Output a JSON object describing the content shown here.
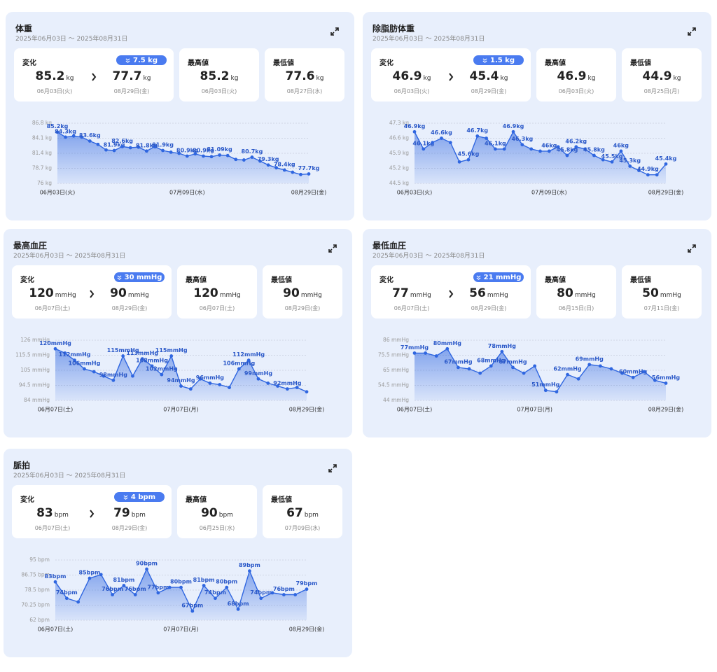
{
  "chart_data": [
    {
      "type": "line",
      "title": "体重",
      "subtitle": "2025年06月03日 〜 2025年08月31日",
      "color": "#2f66e0",
      "grid": true,
      "ylim": [
        76,
        86.8
      ],
      "yticks": [
        {
          "value": 76,
          "label": "76 kg"
        },
        {
          "value": 78.7,
          "label": "78.7 kg"
        },
        {
          "value": 81.4,
          "label": "81.4 kg"
        },
        {
          "value": 84.1,
          "label": "84.1 kg"
        },
        {
          "value": 86.8,
          "label": "86.8 kg"
        }
      ],
      "categories": [
        "06月03日(火)",
        null,
        null,
        null,
        null,
        null,
        null,
        null,
        null,
        null,
        null,
        null,
        null,
        null,
        null,
        null,
        "07月09日(水)",
        null,
        null,
        null,
        null,
        null,
        null,
        null,
        null,
        null,
        null,
        null,
        null,
        null,
        null,
        "08月29日(金)"
      ],
      "values": [
        85.2,
        84.3,
        84.5,
        84.3,
        83.6,
        83.0,
        82.0,
        81.9,
        82.6,
        82.4,
        82.5,
        81.8,
        82.6,
        81.9,
        81.6,
        81.4,
        80.9,
        81.3,
        80.9,
        80.8,
        81.09,
        81.0,
        80.3,
        80.2,
        80.7,
        80.0,
        79.3,
        78.8,
        78.4,
        78.0,
        77.6,
        77.7
      ],
      "value_labels": [
        "85.2kg",
        "84.3kg",
        null,
        null,
        "83.6kg",
        null,
        null,
        "81.9kg",
        "82.6kg",
        null,
        null,
        "81.8kg",
        null,
        "81.9kg",
        null,
        null,
        "80.9kg",
        null,
        "80.9kg",
        null,
        "81.09kg",
        null,
        null,
        null,
        "80.7kg",
        null,
        "79.3kg",
        null,
        "78.4kg",
        null,
        null,
        "77.7kg"
      ]
    },
    {
      "type": "line",
      "title": "除脂肪体重",
      "subtitle": "2025年06月03日 〜 2025年08月31日",
      "color": "#2f66e0",
      "grid": true,
      "ylim": [
        44.5,
        47.3
      ],
      "yticks": [
        {
          "value": 44.5,
          "label": "44.5 kg"
        },
        {
          "value": 45.2,
          "label": "45.2 kg"
        },
        {
          "value": 45.9,
          "label": "45.9 kg"
        },
        {
          "value": 46.6,
          "label": "46.6 kg"
        },
        {
          "value": 47.3,
          "label": "47.3 kg"
        }
      ],
      "categories": [
        "06月03日(火)",
        null,
        null,
        null,
        null,
        null,
        null,
        null,
        null,
        null,
        null,
        null,
        null,
        null,
        null,
        "07月09日(水)",
        null,
        null,
        null,
        null,
        null,
        null,
        null,
        null,
        null,
        null,
        null,
        null,
        "08月29日(金)"
      ],
      "values": [
        46.9,
        46.1,
        46.4,
        46.6,
        46.4,
        45.5,
        45.6,
        46.7,
        46.6,
        46.1,
        46.1,
        46.9,
        46.3,
        46.1,
        46.0,
        46.0,
        46.2,
        45.8,
        46.2,
        46.1,
        45.8,
        45.6,
        45.5,
        46.0,
        45.3,
        45.1,
        44.9,
        44.9,
        45.4
      ],
      "value_labels": [
        "46.9kg",
        "46.1kg",
        null,
        "46.6kg",
        null,
        null,
        "45.6kg",
        "46.7kg",
        null,
        "46.1kg",
        null,
        "46.9kg",
        "46.3kg",
        null,
        null,
        "46kg",
        null,
        "45.8kg",
        "46.2kg",
        null,
        "45.8kg",
        null,
        "45.5kg",
        "46kg",
        "45.3kg",
        null,
        "44.9kg",
        null,
        "45.4kg"
      ]
    },
    {
      "type": "line",
      "title": "最高血圧",
      "subtitle": "2025年06月03日 〜 2025年08月31日",
      "color": "#2f66e0",
      "grid": true,
      "ylim": [
        84,
        126
      ],
      "yticks": [
        {
          "value": 84,
          "label": "84 mmHg"
        },
        {
          "value": 94.5,
          "label": "94.5 mmHg"
        },
        {
          "value": 105,
          "label": "105 mmHg"
        },
        {
          "value": 115.5,
          "label": "115.5 mmHg"
        },
        {
          "value": 126,
          "label": "126 mmHg"
        }
      ],
      "categories": [
        "06月07日(土)",
        null,
        null,
        null,
        null,
        null,
        null,
        null,
        null,
        null,
        null,
        null,
        null,
        "07月07日(月)",
        null,
        null,
        null,
        null,
        null,
        null,
        null,
        null,
        null,
        null,
        null,
        null,
        "08月29日(金)"
      ],
      "values": [
        120,
        117,
        112,
        106,
        104,
        101,
        98,
        115,
        101,
        113,
        108,
        102,
        115,
        94,
        92,
        99,
        96,
        95,
        93,
        106,
        112,
        99,
        96,
        94,
        92,
        93,
        90
      ],
      "value_labels": [
        "120mmHg",
        null,
        "112mmHg",
        "106mmHg",
        null,
        null,
        "98mmHg",
        "115mmHg",
        null,
        "113mmHg",
        "108mmHg",
        "102mmHg",
        "115mmHg",
        "94mmHg",
        null,
        null,
        "96mmHg",
        null,
        null,
        "106mmHg",
        "112mmHg",
        "99mmHg",
        null,
        null,
        "92mmHg",
        null,
        null
      ]
    },
    {
      "type": "line",
      "title": "最低血圧",
      "subtitle": "2025年06月03日 〜 2025年08月31日",
      "color": "#2f66e0",
      "grid": true,
      "ylim": [
        44,
        86
      ],
      "yticks": [
        {
          "value": 44,
          "label": "44 mmHg"
        },
        {
          "value": 54.5,
          "label": "54.5 mmHg"
        },
        {
          "value": 65,
          "label": "65 mmHg"
        },
        {
          "value": 75.5,
          "label": "75.5 mmHg"
        },
        {
          "value": 86,
          "label": "86 mmHg"
        }
      ],
      "categories": [
        "06月07日(土)",
        null,
        null,
        null,
        null,
        null,
        null,
        null,
        null,
        null,
        null,
        "07月07日(月)",
        null,
        null,
        null,
        null,
        null,
        null,
        null,
        null,
        null,
        null,
        null,
        "08月29日(金)"
      ],
      "values": [
        77,
        77,
        75,
        80,
        67,
        66,
        63,
        68,
        78,
        67,
        63,
        68,
        51,
        50,
        62,
        59,
        69,
        68,
        66,
        63,
        60,
        64,
        58,
        56
      ],
      "value_labels": [
        "77mmHg",
        null,
        null,
        "80mmHg",
        "67mmHg",
        null,
        null,
        "68mmHg",
        "78mmHg",
        "67mmHg",
        null,
        null,
        "51mmHg",
        null,
        "62mmHg",
        null,
        "69mmHg",
        null,
        null,
        null,
        "60mmHg",
        null,
        null,
        "56mmHg"
      ]
    },
    {
      "type": "line",
      "title": "脈拍",
      "subtitle": "2025年06月03日 〜 2025年08月31日",
      "color": "#2f66e0",
      "grid": true,
      "ylim": [
        62,
        95
      ],
      "yticks": [
        {
          "value": 62,
          "label": "62 bpm"
        },
        {
          "value": 70.25,
          "label": "70.25 bpm"
        },
        {
          "value": 78.5,
          "label": "78.5 bpm"
        },
        {
          "value": 86.75,
          "label": "86.75 bpm"
        },
        {
          "value": 95,
          "label": "95 bpm"
        }
      ],
      "categories": [
        "06月07日(土)",
        null,
        null,
        null,
        null,
        null,
        null,
        null,
        null,
        null,
        null,
        "07月07日(月)",
        null,
        null,
        null,
        null,
        null,
        null,
        null,
        null,
        null,
        null,
        "08月29日(金)"
      ],
      "values": [
        83,
        74,
        72,
        85,
        87,
        76,
        81,
        76,
        90,
        77,
        80,
        80,
        67,
        81,
        74,
        80,
        68,
        89,
        74,
        77,
        76,
        76,
        79
      ],
      "value_labels": [
        "83bpm",
        "74bpm",
        null,
        "85bpm",
        null,
        "76bpm",
        "81bpm",
        "76bpm",
        "90bpm",
        "77bpm",
        null,
        "80bpm",
        "67bpm",
        "81bpm",
        "74bpm",
        "80bpm",
        "68bpm",
        "89bpm",
        "74bpm",
        null,
        "76bpm",
        null,
        "79bpm"
      ]
    }
  ],
  "cards": [
    {
      "change_label": "変化",
      "change": "7.5 kg",
      "from": {
        "value": 85.2,
        "unit": "kg",
        "date": "06月03日(火)"
      },
      "to": {
        "value": 77.7,
        "unit": "kg",
        "date": "08月29日(金)"
      },
      "max": {
        "label": "最高値",
        "value": 85.2,
        "unit": "kg",
        "date": "06月03日(火)"
      },
      "min": {
        "label": "最低値",
        "value": 77.6,
        "unit": "kg",
        "date": "08月27日(水)"
      }
    },
    {
      "change_label": "変化",
      "change": "1.5 kg",
      "from": {
        "value": 46.9,
        "unit": "kg",
        "date": "06月03日(火)"
      },
      "to": {
        "value": 45.4,
        "unit": "kg",
        "date": "08月29日(金)"
      },
      "max": {
        "label": "最高値",
        "value": 46.9,
        "unit": "kg",
        "date": "06月03日(火)"
      },
      "min": {
        "label": "最低値",
        "value": 44.9,
        "unit": "kg",
        "date": "08月25日(月)"
      }
    },
    {
      "change_label": "変化",
      "change": "30 mmHg",
      "from": {
        "value": 120,
        "unit": "mmHg",
        "date": "06月07日(土)"
      },
      "to": {
        "value": 90,
        "unit": "mmHg",
        "date": "08月29日(金)"
      },
      "max": {
        "label": "最高値",
        "value": 120,
        "unit": "mmHg",
        "date": "06月07日(土)"
      },
      "min": {
        "label": "最低値",
        "value": 90,
        "unit": "mmHg",
        "date": "08月29日(金)"
      }
    },
    {
      "change_label": "変化",
      "change": "21 mmHg",
      "from": {
        "value": 77,
        "unit": "mmHg",
        "date": "06月07日(土)"
      },
      "to": {
        "value": 56,
        "unit": "mmHg",
        "date": "08月29日(金)"
      },
      "max": {
        "label": "最高値",
        "value": 80,
        "unit": "mmHg",
        "date": "06月15日(日)"
      },
      "min": {
        "label": "最低値",
        "value": 50,
        "unit": "mmHg",
        "date": "07月11日(金)"
      }
    },
    {
      "change_label": "変化",
      "change": "4 bpm",
      "from": {
        "value": 83,
        "unit": "bpm",
        "date": "06月07日(土)"
      },
      "to": {
        "value": 79,
        "unit": "bpm",
        "date": "08月29日(金)"
      },
      "max": {
        "label": "最高値",
        "value": 90,
        "unit": "bpm",
        "date": "06月25日(水)"
      },
      "min": {
        "label": "最低値",
        "value": 67,
        "unit": "bpm",
        "date": "07月09日(水)"
      }
    }
  ]
}
